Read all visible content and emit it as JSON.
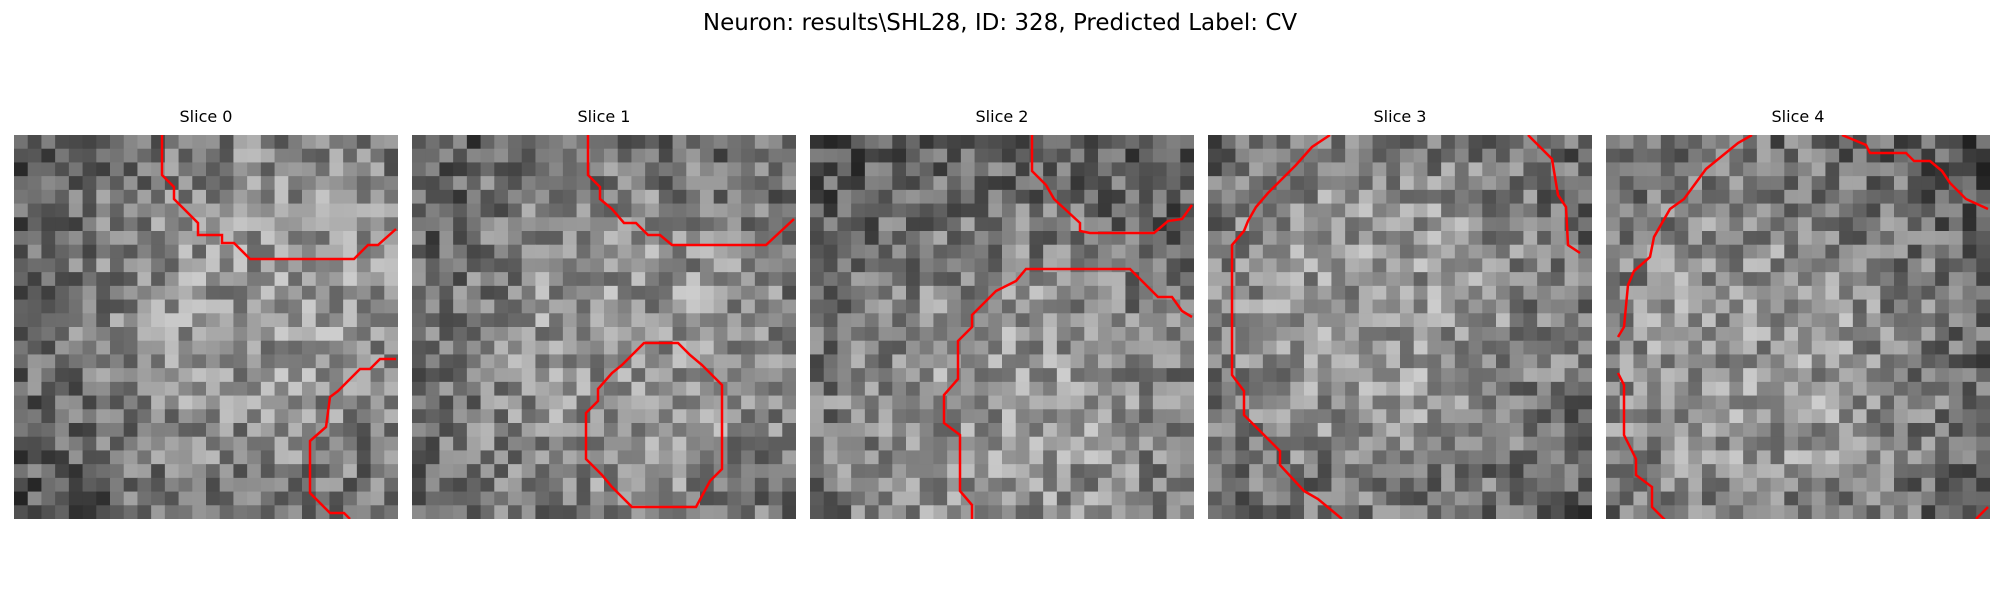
{
  "figure": {
    "title": "Neuron: results\\SHL28, ID: 328, Predicted Label: CV"
  },
  "colors": {
    "contour": "#ff0000",
    "colormap": "grayscale"
  },
  "panels": [
    {
      "title": "Slice 0"
    },
    {
      "title": "Slice 1"
    },
    {
      "title": "Slice 2"
    },
    {
      "title": "Slice 3"
    },
    {
      "title": "Slice 4"
    }
  ]
}
